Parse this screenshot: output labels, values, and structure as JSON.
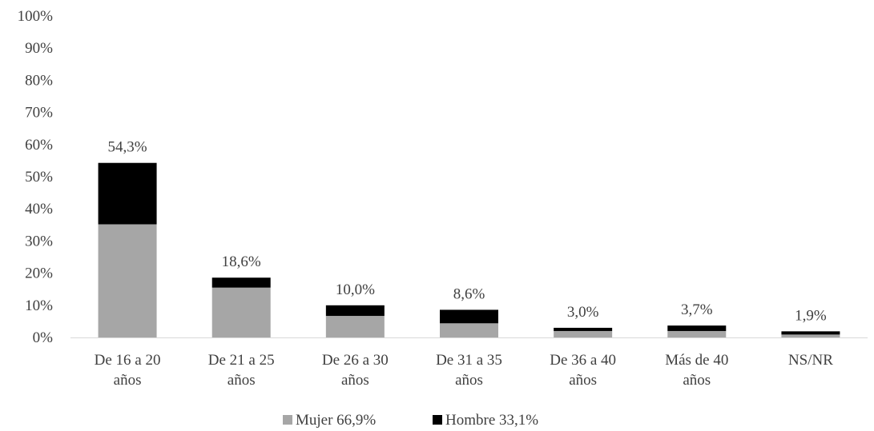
{
  "chart_data": {
    "type": "bar",
    "stacked": true,
    "categories": [
      [
        "De 16 a 20",
        "años"
      ],
      [
        "De 21 a 25",
        "años"
      ],
      [
        "De 26 a 30",
        "años"
      ],
      [
        "De 31 a 35",
        "años"
      ],
      [
        "De 36 a 40",
        "años"
      ],
      [
        "Más de 40",
        "años"
      ],
      [
        "NS/NR"
      ]
    ],
    "series": [
      {
        "name": "Mujer 66,9%",
        "color": "#a6a6a6",
        "values": [
          35.2,
          15.5,
          6.7,
          4.4,
          2.0,
          2.0,
          0.9
        ]
      },
      {
        "name": "Hombre 33,1%",
        "color": "#000000",
        "values": [
          19.1,
          3.1,
          3.3,
          4.2,
          1.0,
          1.7,
          1.0
        ]
      }
    ],
    "totals_labels": [
      "54,3%",
      "18,6%",
      "10,0%",
      "8,6%",
      "3,0%",
      "3,7%",
      "1,9%"
    ],
    "ylim": [
      0,
      100
    ],
    "yticks": [
      "0%",
      "10%",
      "20%",
      "30%",
      "40%",
      "50%",
      "60%",
      "70%",
      "80%",
      "90%",
      "100%"
    ],
    "grid": false,
    "legend_position": "bottom"
  }
}
